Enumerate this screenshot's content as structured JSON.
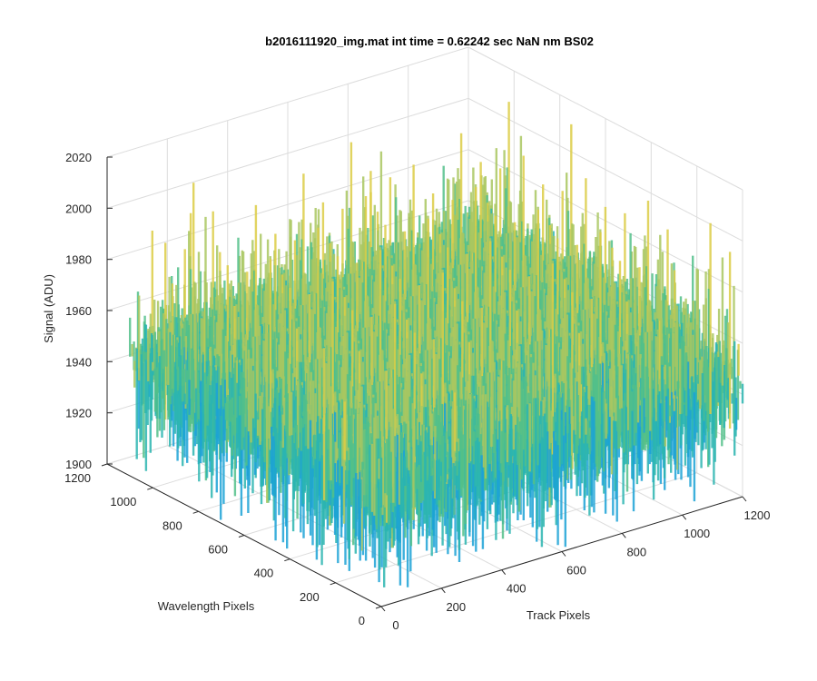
{
  "chart_data": {
    "type": "surface",
    "title": "b2016111920_img.mat int time = 0.62242 sec  NaN nm BS02",
    "xlabel": "Track Pixels",
    "ylabel": "Wavelength Pixels",
    "zlabel": "Signal (ADU)",
    "xlim": [
      0,
      1200
    ],
    "ylim": [
      0,
      1200
    ],
    "zlim": [
      1900,
      2020
    ],
    "x_ticks": [
      "0",
      "200",
      "400",
      "600",
      "800",
      "1000",
      "1200"
    ],
    "y_ticks": [
      "0",
      "200",
      "400",
      "600",
      "800",
      "1000",
      "1200"
    ],
    "z_ticks": [
      "1900",
      "1920",
      "1940",
      "1960",
      "1980",
      "2000",
      "2020"
    ],
    "grid": true,
    "surface": {
      "x_range": [
        0,
        1200
      ],
      "y_range": [
        0,
        1100
      ],
      "mean": 1945,
      "noise_range": [
        1900,
        2015
      ],
      "colormap": [
        "#1ca2d6",
        "#2bb5b0",
        "#52c08a",
        "#a9c760",
        "#dccc45"
      ]
    }
  }
}
